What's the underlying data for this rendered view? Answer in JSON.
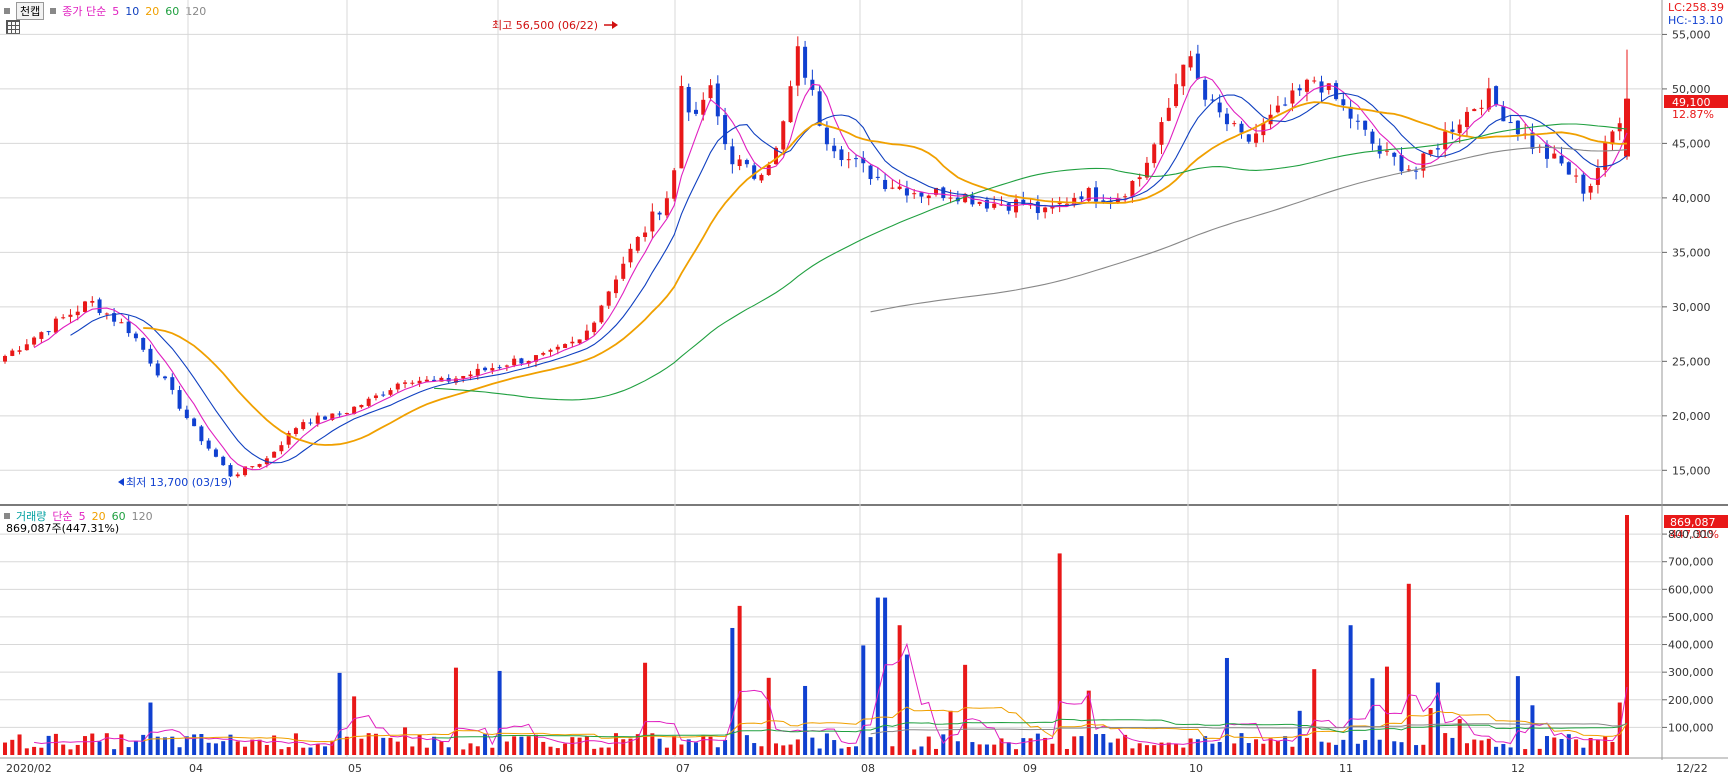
{
  "price_panel": {
    "tab_label": "천캡",
    "legend": {
      "base": "종가 단순",
      "periods": [
        "5",
        "10",
        "20",
        "60",
        "120"
      ],
      "colors": [
        "#e020c0",
        "#1040c0",
        "#f0a000",
        "#20a040",
        "#888888"
      ]
    },
    "lc_label": "LC:258.39",
    "hc_label": "HC:-13.10",
    "current_price": "49,100",
    "change_pct": "12.87%",
    "high_annotation": "최고 56,500 (06/22)",
    "low_annotation": "최저 13,700 (03/19)"
  },
  "volume_panel": {
    "title": "거래량",
    "legend_base": "단순",
    "periods": [
      "5",
      "20",
      "60",
      "120"
    ],
    "colors": [
      "#e020c0",
      "#f0a000",
      "#20a040",
      "#888888"
    ],
    "summary": "869,087주(447.31%)",
    "current_volume": "869,087",
    "current_pct": "447.31%"
  },
  "x_axis_labels": [
    "2020/02",
    "04",
    "05",
    "06",
    "07",
    "08",
    "09",
    "10",
    "11",
    "12",
    "12/22"
  ],
  "colors": {
    "up": "#e81818",
    "down": "#1040d0",
    "grid": "#d8d8d8"
  },
  "chart_data": [
    {
      "type": "candlestick",
      "title": "",
      "y_ticks": [
        "15,000",
        "20,000",
        "25,000",
        "30,000",
        "35,000",
        "40,000",
        "45,000",
        "50,000",
        "55,000"
      ],
      "ylim": [
        12000,
        57700
      ],
      "x_range": [
        "2020/02",
        "12/22"
      ],
      "series_close": [
        {
          "d": "2020/02/03",
          "v": 25500
        },
        {
          "d": "2020/02/13",
          "v": 28500
        },
        {
          "d": "2020/02/20",
          "v": 30500
        },
        {
          "d": "2020/02/28",
          "v": 27800
        },
        {
          "d": "2020/03/06",
          "v": 23000
        },
        {
          "d": "2020/03/12",
          "v": 18500
        },
        {
          "d": "2020/03/19",
          "v": 14500
        },
        {
          "d": "2020/03/26",
          "v": 16000
        },
        {
          "d": "2020/04/02",
          "v": 19500
        },
        {
          "d": "2020/04/09",
          "v": 20000
        },
        {
          "d": "2020/04/16",
          "v": 21500
        },
        {
          "d": "2020/04/23",
          "v": 23500
        },
        {
          "d": "2020/04/29",
          "v": 23000
        },
        {
          "d": "2020/05/07",
          "v": 24000
        },
        {
          "d": "2020/05/14",
          "v": 25000
        },
        {
          "d": "2020/05/21",
          "v": 25500
        },
        {
          "d": "2020/05/28",
          "v": 27000
        },
        {
          "d": "2020/06/01",
          "v": 30500
        },
        {
          "d": "2020/06/05",
          "v": 34000
        },
        {
          "d": "2020/06/10",
          "v": 37500
        },
        {
          "d": "2020/06/15",
          "v": 41000
        },
        {
          "d": "2020/06/17",
          "v": 52000
        },
        {
          "d": "2020/06/19",
          "v": 46000
        },
        {
          "d": "2020/06/22",
          "v": 50500
        },
        {
          "d": "2020/06/26",
          "v": 44000
        },
        {
          "d": "2020/07/01",
          "v": 42000
        },
        {
          "d": "2020/07/06",
          "v": 44500
        },
        {
          "d": "2020/07/10",
          "v": 53500
        },
        {
          "d": "2020/07/15",
          "v": 46000
        },
        {
          "d": "2020/07/20",
          "v": 43500
        },
        {
          "d": "2020/07/27",
          "v": 41500
        },
        {
          "d": "2020/08/03",
          "v": 40500
        },
        {
          "d": "2020/08/10",
          "v": 40500
        },
        {
          "d": "2020/08/17",
          "v": 39500
        },
        {
          "d": "2020/08/24",
          "v": 39500
        },
        {
          "d": "2020/08/28",
          "v": 38500
        },
        {
          "d": "2020/09/04",
          "v": 40500
        },
        {
          "d": "2020/09/11",
          "v": 40000
        },
        {
          "d": "2020/09/16",
          "v": 42000
        },
        {
          "d": "2020/09/21",
          "v": 47000
        },
        {
          "d": "2020/09/25",
          "v": 53500
        },
        {
          "d": "2020/09/29",
          "v": 49000
        },
        {
          "d": "2020/10/07",
          "v": 45000
        },
        {
          "d": "2020/10/14",
          "v": 48000
        },
        {
          "d": "2020/10/21",
          "v": 51000
        },
        {
          "d": "2020/10/27",
          "v": 48000
        },
        {
          "d": "2020/11/03",
          "v": 44000
        },
        {
          "d": "2020/11/10",
          "v": 42500
        },
        {
          "d": "2020/11/17",
          "v": 46500
        },
        {
          "d": "2020/11/24",
          "v": 49500
        },
        {
          "d": "2020/11/30",
          "v": 46500
        },
        {
          "d": "2020/12/04",
          "v": 44500
        },
        {
          "d": "2020/12/09",
          "v": 43000
        },
        {
          "d": "2020/12/14",
          "v": 40500
        },
        {
          "d": "2020/12/22",
          "v": 49100
        }
      ]
    },
    {
      "type": "bar",
      "title": "거래량",
      "y_ticks": [
        "100,000",
        "200,000",
        "300,000",
        "400,000",
        "500,000",
        "600,000",
        "700,000",
        "800,000"
      ],
      "ylim": [
        0,
        880000
      ],
      "values_sample": [
        40000,
        190000,
        60000,
        100000,
        460000,
        540000,
        250000,
        560000,
        570000,
        470000,
        160000,
        730000,
        60000,
        160000,
        470000,
        620000,
        180000,
        170000,
        70000,
        50000,
        30000,
        869087
      ]
    }
  ]
}
